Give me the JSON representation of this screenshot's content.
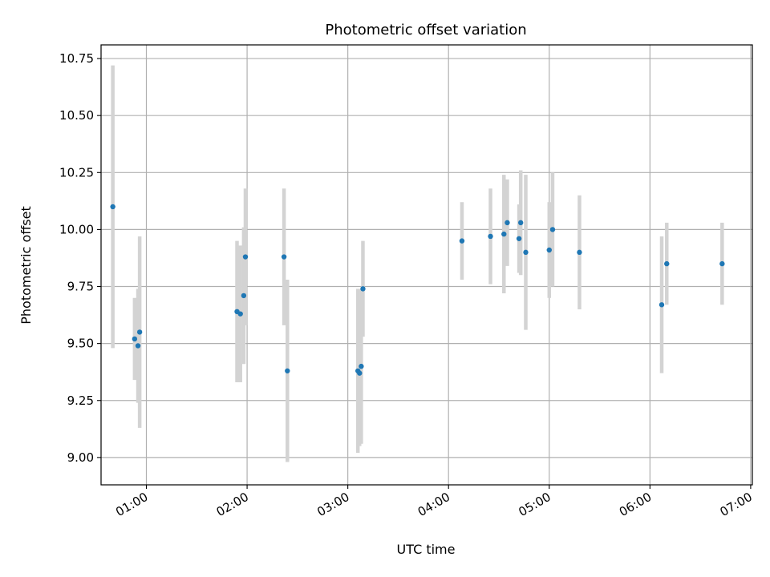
{
  "chart_data": {
    "type": "scatter",
    "title": "Photometric offset variation",
    "xlabel": "UTC time",
    "ylabel": "Photometric offset",
    "grid": true,
    "legend": "none",
    "xlim": [
      "00:33",
      "07:01"
    ],
    "ylim": [
      8.88,
      10.81
    ],
    "x_ticks": [
      "01:00",
      "02:00",
      "03:00",
      "04:00",
      "05:00",
      "06:00",
      "07:00"
    ],
    "y_ticks": [
      "9.00",
      "9.25",
      "9.50",
      "9.75",
      "10.00",
      "10.25",
      "10.50",
      "10.75"
    ],
    "point_color": "#1f77b4",
    "errorbar_color": "#d3d3d3",
    "series": [
      {
        "points": [
          {
            "x": "00:40",
            "y": 10.1,
            "err": 0.62
          },
          {
            "x": "00:53",
            "y": 9.52,
            "err": 0.18
          },
          {
            "x": "00:55",
            "y": 9.49,
            "err": 0.25
          },
          {
            "x": "00:56",
            "y": 9.55,
            "err": 0.42
          },
          {
            "x": "01:54",
            "y": 9.64,
            "err": 0.31
          },
          {
            "x": "01:56",
            "y": 9.63,
            "err": 0.3
          },
          {
            "x": "01:58",
            "y": 9.71,
            "err": 0.3
          },
          {
            "x": "01:59",
            "y": 9.88,
            "err": 0.3
          },
          {
            "x": "02:22",
            "y": 9.88,
            "err": 0.3
          },
          {
            "x": "02:24",
            "y": 9.38,
            "err": 0.4
          },
          {
            "x": "03:06",
            "y": 9.38,
            "err": 0.36
          },
          {
            "x": "03:07",
            "y": 9.37,
            "err": 0.32
          },
          {
            "x": "03:08",
            "y": 9.4,
            "err": 0.34
          },
          {
            "x": "03:09",
            "y": 9.74,
            "err": 0.21
          },
          {
            "x": "04:08",
            "y": 9.95,
            "err": 0.17
          },
          {
            "x": "04:25",
            "y": 9.97,
            "err": 0.21
          },
          {
            "x": "04:33",
            "y": 9.98,
            "err": 0.26
          },
          {
            "x": "04:35",
            "y": 10.03,
            "err": 0.19
          },
          {
            "x": "04:42",
            "y": 9.96,
            "err": 0.15
          },
          {
            "x": "04:43",
            "y": 10.03,
            "err": 0.23
          },
          {
            "x": "04:46",
            "y": 9.9,
            "err": 0.34
          },
          {
            "x": "05:00",
            "y": 9.91,
            "err": 0.21
          },
          {
            "x": "05:02",
            "y": 10.0,
            "err": 0.25
          },
          {
            "x": "05:18",
            "y": 9.9,
            "err": 0.25
          },
          {
            "x": "06:07",
            "y": 9.67,
            "err": 0.3
          },
          {
            "x": "06:10",
            "y": 9.85,
            "err": 0.18
          },
          {
            "x": "06:43",
            "y": 9.85,
            "err": 0.18
          }
        ]
      }
    ]
  }
}
